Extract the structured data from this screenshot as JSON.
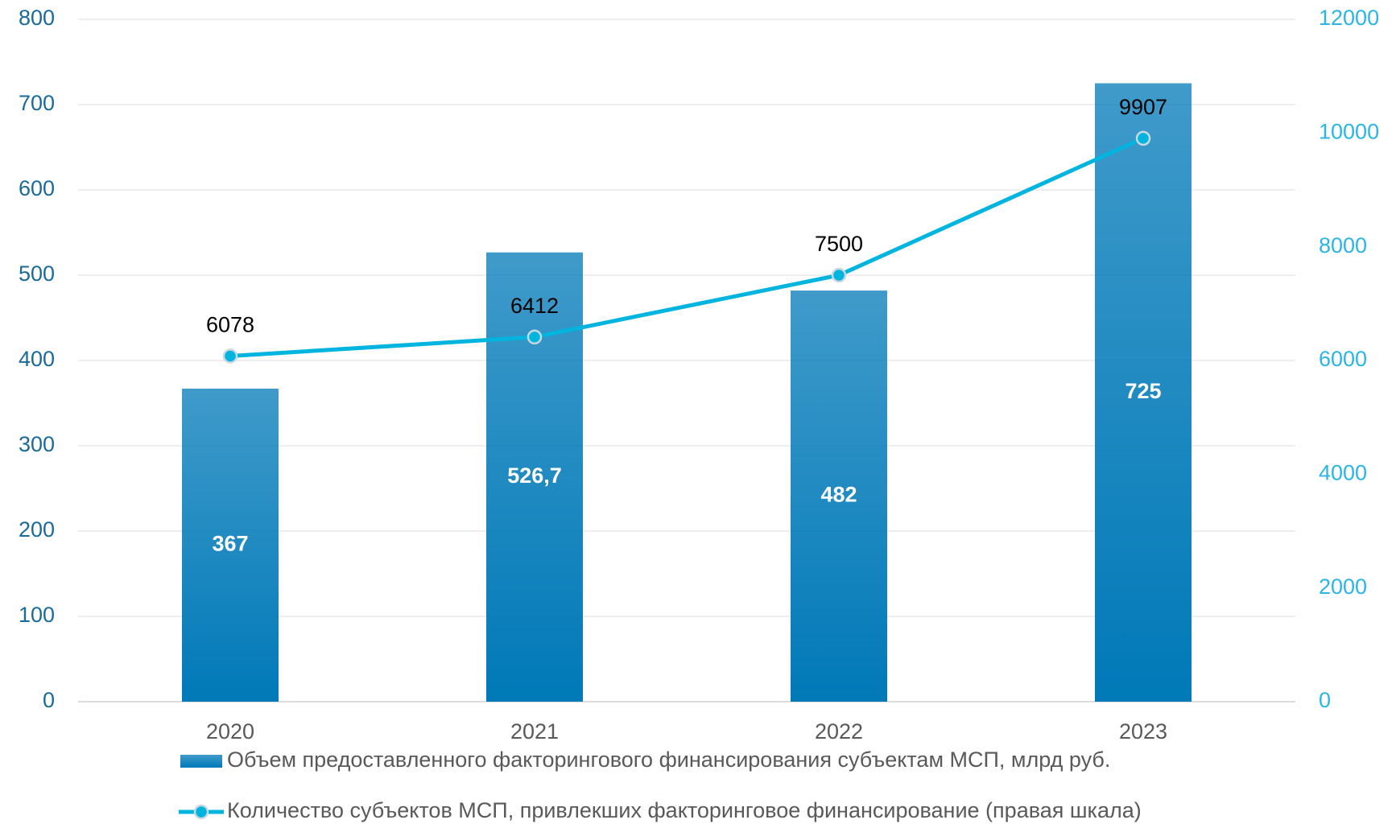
{
  "chart_data": {
    "type": "bar-line",
    "categories": [
      "2020",
      "2021",
      "2022",
      "2023"
    ],
    "series": [
      {
        "name": "Объем предоставленного факторингового финансирования субъектам МСП, млрд руб.",
        "type": "bar",
        "color": "#0079b8",
        "values": [
          367,
          526.7,
          482,
          725
        ],
        "value_labels": [
          "367",
          "526,7",
          "482",
          "725"
        ]
      },
      {
        "name": "Количество субъектов МСП, привлекших факторинговое финансирование (правая шкала)",
        "type": "line",
        "axis": "y2",
        "color": "#00b4e0",
        "values": [
          6078,
          6412,
          7500,
          9907
        ]
      }
    ],
    "ylim": [
      0,
      800
    ],
    "yticks": [
      0,
      100,
      200,
      300,
      400,
      500,
      600,
      700,
      800
    ],
    "y2lim": [
      0,
      12000
    ],
    "y2ticks": [
      0,
      2000,
      4000,
      6000,
      8000,
      10000,
      12000
    ],
    "grid": true,
    "legend": "bottom"
  }
}
